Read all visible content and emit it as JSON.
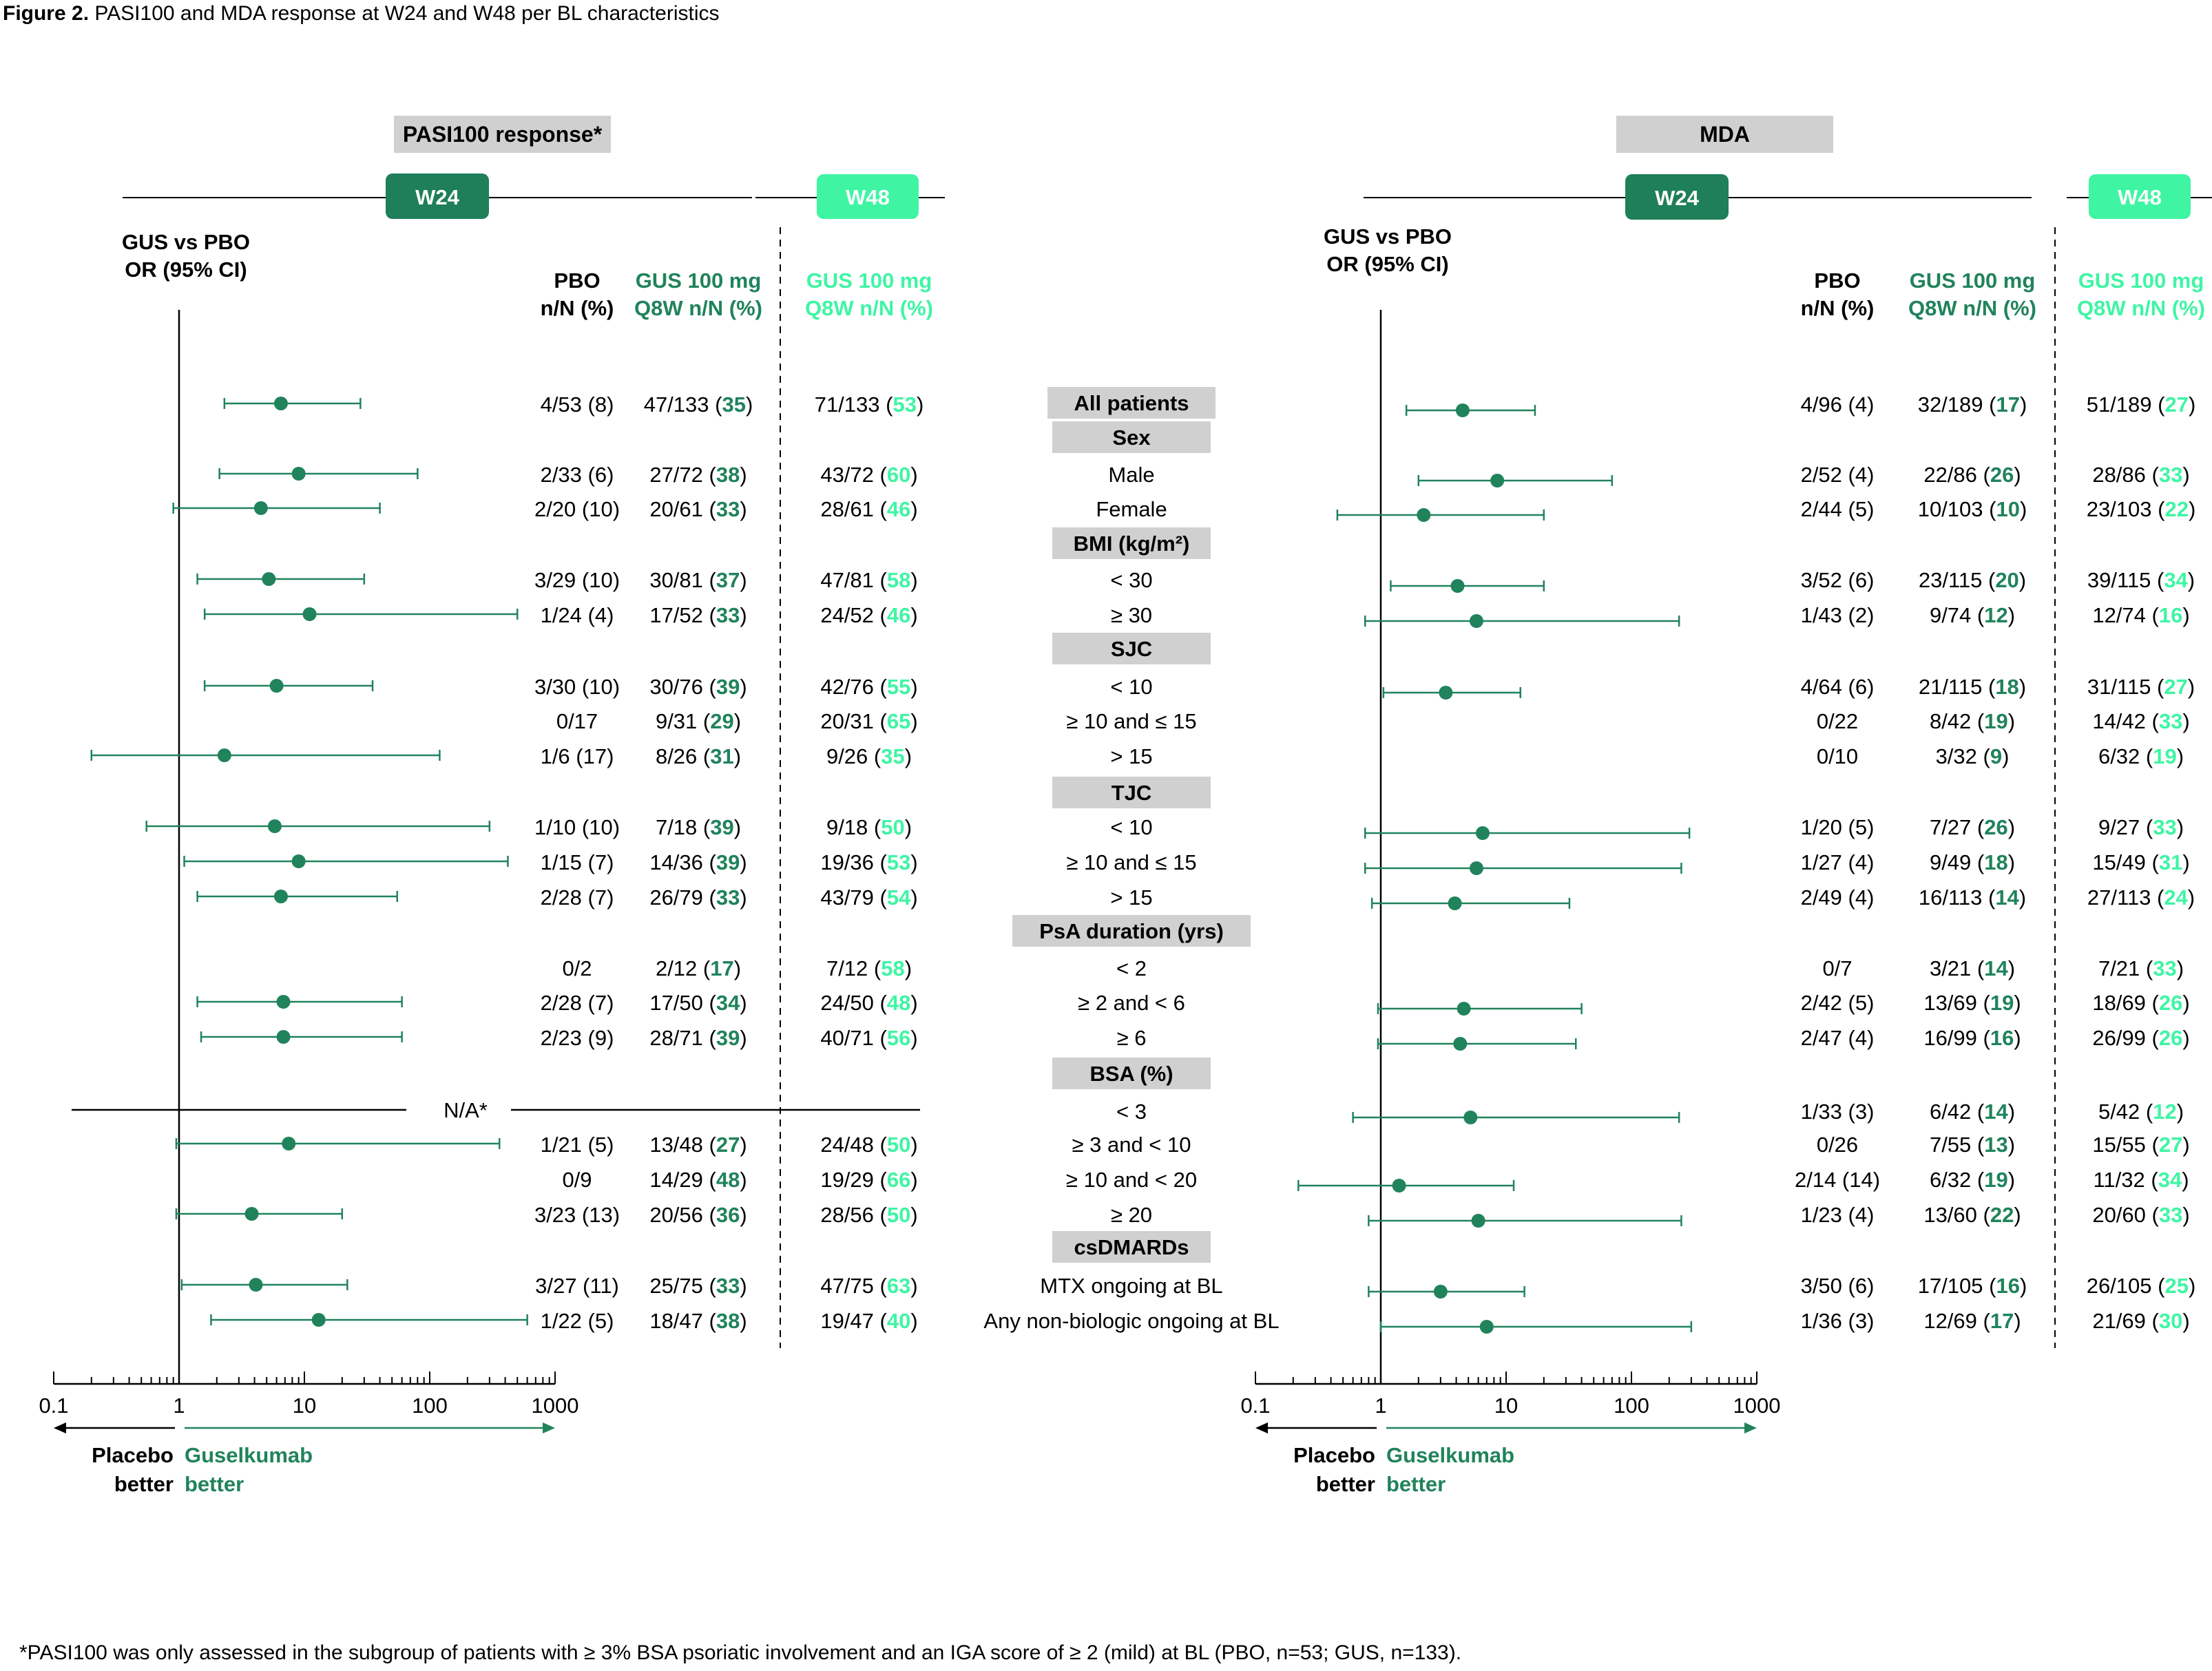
{
  "figure": {
    "title_bold": "Figure 2.",
    "title_rest": " PASI100 and MDA response at W24 and W48 per BL characteristics",
    "footnote": "*PASI100 was only assessed in the subgroup of patients with ≥ 3% BSA psoriatic involvement and an IGA score of ≥ 2 (mild) at BL (PBO, n=53; GUS, n=133)."
  },
  "colors": {
    "dark_green": "#1e7f5a",
    "mid_green": "#20835c",
    "light_green": "#3ff5a4",
    "label_grey": "#d0d0d0",
    "text": "#000000"
  },
  "common": {
    "w24": "W24",
    "w48": "W48",
    "or_line1": "GUS vs PBO",
    "or_line2": "OR (95% CI)",
    "pbo_h1": "PBO",
    "pbo_h2": "n/N (%)",
    "gus_h1": "GUS 100 mg",
    "gus_h2": "Q8W n/N (%)",
    "ticks": [
      "0.1",
      "1",
      "10",
      "100",
      "1000"
    ],
    "placebo_better_1": "Placebo",
    "placebo_better_2": "better",
    "gus_better_1": "Guselkumab",
    "gus_better_2": "better",
    "na_label": "N/A*"
  },
  "rows": [
    {
      "kind": "header",
      "label": "All patients"
    },
    {
      "kind": "header",
      "label": "Sex"
    },
    {
      "kind": "row",
      "label": "Male"
    },
    {
      "kind": "row",
      "label": "Female"
    },
    {
      "kind": "header",
      "label": "BMI (kg/m²)"
    },
    {
      "kind": "row",
      "label": "< 30"
    },
    {
      "kind": "row",
      "label": "≥ 30"
    },
    {
      "kind": "header",
      "label": "SJC"
    },
    {
      "kind": "row",
      "label": "< 10"
    },
    {
      "kind": "row",
      "label": "≥ 10 and ≤ 15"
    },
    {
      "kind": "row",
      "label": "> 15"
    },
    {
      "kind": "header",
      "label": "TJC"
    },
    {
      "kind": "row",
      "label": "< 10"
    },
    {
      "kind": "row",
      "label": "≥ 10 and ≤ 15"
    },
    {
      "kind": "row",
      "label": "> 15"
    },
    {
      "kind": "header",
      "label": "PsA duration (yrs)"
    },
    {
      "kind": "row",
      "label": "< 2"
    },
    {
      "kind": "row",
      "label": "≥ 2 and < 6"
    },
    {
      "kind": "row",
      "label": "≥ 6"
    },
    {
      "kind": "header",
      "label": "BSA (%)"
    },
    {
      "kind": "row",
      "label": "< 3"
    },
    {
      "kind": "row",
      "label": "≥ 3 and < 10"
    },
    {
      "kind": "row",
      "label": "≥ 10 and < 20"
    },
    {
      "kind": "row",
      "label": "≥ 20"
    },
    {
      "kind": "header",
      "label": "csDMARDs"
    },
    {
      "kind": "row",
      "label": "MTX ongoing at BL"
    },
    {
      "kind": "row",
      "label": "Any non-biologic ongoing at BL"
    }
  ],
  "chart_data": [
    {
      "type": "forest",
      "panel": "PASI100 response*",
      "xscale": "log",
      "xlim": [
        0.1,
        1000
      ],
      "na_row": 20,
      "rows": [
        {
          "row": 0,
          "or": 6.5,
          "lo": 2.3,
          "hi": 28,
          "pbo": "4/53 (8)",
          "gus24": "47/133 (",
          "gus24b": "35",
          "gus48": "71/133 (",
          "gus48b": "53"
        },
        {
          "row": 2,
          "or": 9.0,
          "lo": 2.1,
          "hi": 80,
          "pbo": "2/33 (6)",
          "gus24": "27/72 (",
          "gus24b": "38",
          "gus48": "43/72 (",
          "gus48b": "60"
        },
        {
          "row": 3,
          "or": 4.5,
          "lo": 0.9,
          "hi": 40,
          "pbo": "2/20 (10)",
          "gus24": "20/61 (",
          "gus24b": "33",
          "gus48": "28/61 (",
          "gus48b": "46"
        },
        {
          "row": 5,
          "or": 5.2,
          "lo": 1.4,
          "hi": 30,
          "pbo": "3/29 (10)",
          "gus24": "30/81 (",
          "gus24b": "37",
          "gus48": "47/81 (",
          "gus48b": "58"
        },
        {
          "row": 6,
          "or": 11,
          "lo": 1.6,
          "hi": 500,
          "pbo": "1/24 (4)",
          "gus24": "17/52 (",
          "gus24b": "33",
          "gus48": "24/52 (",
          "gus48b": "46"
        },
        {
          "row": 8,
          "or": 6.0,
          "lo": 1.6,
          "hi": 35,
          "pbo": "3/30 (10)",
          "gus24": "30/76 (",
          "gus24b": "39",
          "gus48": "42/76 (",
          "gus48b": "55"
        },
        {
          "row": 9,
          "or": null,
          "pbo": "0/17",
          "gus24": "9/31 (",
          "gus24b": "29",
          "gus48": "20/31 (",
          "gus48b": "65"
        },
        {
          "row": 10,
          "or": 2.3,
          "lo": 0.2,
          "hi": 120,
          "pbo": "1/6 (17)",
          "gus24": "8/26 (",
          "gus24b": "31",
          "gus48": "9/26 (",
          "gus48b": "35"
        },
        {
          "row": 12,
          "or": 5.8,
          "lo": 0.55,
          "hi": 300,
          "pbo": "1/10 (10)",
          "gus24": "7/18 (",
          "gus24b": "39",
          "gus48": "9/18 (",
          "gus48b": "50"
        },
        {
          "row": 13,
          "or": 9.0,
          "lo": 1.1,
          "hi": 420,
          "pbo": "1/15 (7)",
          "gus24": "14/36 (",
          "gus24b": "39",
          "gus48": "19/36 (",
          "gus48b": "53"
        },
        {
          "row": 14,
          "or": 6.5,
          "lo": 1.4,
          "hi": 55,
          "pbo": "2/28 (7)",
          "gus24": "26/79 (",
          "gus24b": "33",
          "gus48": "43/79 (",
          "gus48b": "54"
        },
        {
          "row": 16,
          "or": null,
          "pbo": "0/2",
          "gus24": "2/12 (",
          "gus24b": "17",
          "gus48": "7/12 (",
          "gus48b": "58"
        },
        {
          "row": 17,
          "or": 6.8,
          "lo": 1.4,
          "hi": 60,
          "pbo": "2/28 (7)",
          "gus24": "17/50 (",
          "gus24b": "34",
          "gus48": "24/50 (",
          "gus48b": "48"
        },
        {
          "row": 18,
          "or": 6.8,
          "lo": 1.5,
          "hi": 60,
          "pbo": "2/23 (9)",
          "gus24": "28/71 (",
          "gus24b": "39",
          "gus48": "40/71 (",
          "gus48b": "56"
        },
        {
          "row": 21,
          "or": 7.5,
          "lo": 0.95,
          "hi": 360,
          "pbo": "1/21 (5)",
          "gus24": "13/48 (",
          "gus24b": "27",
          "gus48": "24/48 (",
          "gus48b": "50"
        },
        {
          "row": 22,
          "or": null,
          "pbo": "0/9",
          "gus24": "14/29 (",
          "gus24b": "48",
          "gus48": "19/29 (",
          "gus48b": "66"
        },
        {
          "row": 23,
          "or": 3.8,
          "lo": 0.95,
          "hi": 20,
          "pbo": "3/23 (13)",
          "gus24": "20/56 (",
          "gus24b": "36",
          "gus48": "28/56 (",
          "gus48b": "50"
        },
        {
          "row": 25,
          "or": 4.1,
          "lo": 1.05,
          "hi": 22,
          "pbo": "3/27 (11)",
          "gus24": "25/75 (",
          "gus24b": "33",
          "gus48": "47/75 (",
          "gus48b": "63"
        },
        {
          "row": 26,
          "or": 13,
          "lo": 1.8,
          "hi": 600,
          "pbo": "1/22 (5)",
          "gus24": "18/47 (",
          "gus24b": "38",
          "gus48": "19/47 (",
          "gus48b": "40"
        }
      ]
    },
    {
      "type": "forest",
      "panel": "MDA",
      "xscale": "log",
      "xlim": [
        0.1,
        1000
      ],
      "rows": [
        {
          "row": 0,
          "or": 4.5,
          "lo": 1.6,
          "hi": 17,
          "pbo": "4/96 (4)",
          "gus24": "32/189 (",
          "gus24b": "17",
          "gus48": "51/189 (",
          "gus48b": "27"
        },
        {
          "row": 2,
          "or": 8.5,
          "lo": 2.0,
          "hi": 70,
          "pbo": "2/52 (4)",
          "gus24": "22/86 (",
          "gus24b": "26",
          "gus48": "28/86 (",
          "gus48b": "33"
        },
        {
          "row": 3,
          "or": 2.2,
          "lo": 0.45,
          "hi": 20,
          "pbo": "2/44 (5)",
          "gus24": "10/103 (",
          "gus24b": "10",
          "gus48": "23/103 (",
          "gus48b": "22"
        },
        {
          "row": 5,
          "or": 4.1,
          "lo": 1.2,
          "hi": 20,
          "pbo": "3/52 (6)",
          "gus24": "23/115 (",
          "gus24b": "20",
          "gus48": "39/115 (",
          "gus48b": "34"
        },
        {
          "row": 6,
          "or": 5.8,
          "lo": 0.75,
          "hi": 240,
          "pbo": "1/43 (2)",
          "gus24": "9/74 (",
          "gus24b": "12",
          "gus48": "12/74 (",
          "gus48b": "16"
        },
        {
          "row": 8,
          "or": 3.3,
          "lo": 1.05,
          "hi": 13,
          "pbo": "4/64 (6)",
          "gus24": "21/115 (",
          "gus24b": "18",
          "gus48": "31/115 (",
          "gus48b": "27"
        },
        {
          "row": 9,
          "or": null,
          "pbo": "0/22",
          "gus24": "8/42 (",
          "gus24b": "19",
          "gus48": "14/42 (",
          "gus48b": "33"
        },
        {
          "row": 10,
          "or": null,
          "pbo": "0/10",
          "gus24": "3/32 (",
          "gus24b": "9",
          "gus48": "6/32 (",
          "gus48b": "19"
        },
        {
          "row": 12,
          "or": 6.5,
          "lo": 0.75,
          "hi": 290,
          "pbo": "1/20 (5)",
          "gus24": "7/27 (",
          "gus24b": "26",
          "gus48": "9/27 (",
          "gus48b": "33"
        },
        {
          "row": 13,
          "or": 5.8,
          "lo": 0.75,
          "hi": 250,
          "pbo": "1/27 (4)",
          "gus24": "9/49 (",
          "gus24b": "18",
          "gus48": "15/49 (",
          "gus48b": "31"
        },
        {
          "row": 14,
          "or": 3.9,
          "lo": 0.85,
          "hi": 32,
          "pbo": "2/49 (4)",
          "gus24": "16/113 (",
          "gus24b": "14",
          "gus48": "27/113 (",
          "gus48b": "24"
        },
        {
          "row": 16,
          "or": null,
          "pbo": "0/7",
          "gus24": "3/21 (",
          "gus24b": "14",
          "gus48": "7/21 (",
          "gus48b": "33"
        },
        {
          "row": 17,
          "or": 4.6,
          "lo": 0.95,
          "hi": 40,
          "pbo": "2/42 (5)",
          "gus24": "13/69 (",
          "gus24b": "19",
          "gus48": "18/69 (",
          "gus48b": "26"
        },
        {
          "row": 18,
          "or": 4.3,
          "lo": 0.95,
          "hi": 36,
          "pbo": "2/47 (4)",
          "gus24": "16/99 (",
          "gus24b": "16",
          "gus48": "26/99 (",
          "gus48b": "26"
        },
        {
          "row": 20,
          "or": 5.2,
          "lo": 0.6,
          "hi": 240,
          "pbo": "1/33 (3)",
          "gus24": "6/42 (",
          "gus24b": "14",
          "gus48": "5/42 (",
          "gus48b": "12"
        },
        {
          "row": 21,
          "or": null,
          "pbo": "0/26",
          "gus24": "7/55 (",
          "gus24b": "13",
          "gus48": "15/55 (",
          "gus48b": "27"
        },
        {
          "row": 22,
          "or": 1.4,
          "lo": 0.22,
          "hi": 11.5,
          "pbo": "2/14 (14)",
          "gus24": "6/32 (",
          "gus24b": "19",
          "gus48": "11/32 (",
          "gus48b": "34"
        },
        {
          "row": 23,
          "or": 6.0,
          "lo": 0.8,
          "hi": 250,
          "pbo": "1/23 (4)",
          "gus24": "13/60 (",
          "gus24b": "22",
          "gus48": "20/60 (",
          "gus48b": "33"
        },
        {
          "row": 25,
          "or": 3.0,
          "lo": 0.8,
          "hi": 14,
          "pbo": "3/50 (6)",
          "gus24": "17/105 (",
          "gus24b": "16",
          "gus48": "26/105 (",
          "gus48b": "25"
        },
        {
          "row": 26,
          "or": 7.0,
          "lo": 1.0,
          "hi": 300,
          "pbo": "1/36 (3)",
          "gus24": "12/69 (",
          "gus24b": "17",
          "gus48": "21/69 (",
          "gus48b": "30"
        }
      ]
    }
  ]
}
